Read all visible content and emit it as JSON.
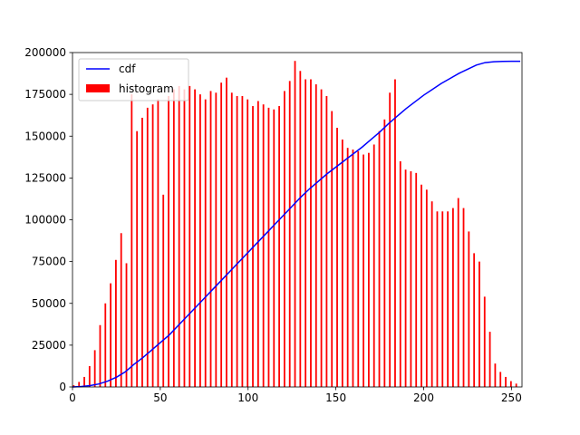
{
  "chart_data": {
    "type": "bar",
    "title": "",
    "xlabel": "",
    "ylabel": "",
    "xlim": [
      0,
      256
    ],
    "ylim": [
      0,
      200000
    ],
    "x_ticks": [
      0,
      50,
      100,
      150,
      200,
      250
    ],
    "x_tick_labels": [
      "0",
      "50",
      "100",
      "150",
      "200",
      "250"
    ],
    "y_ticks": [
      0,
      25000,
      50000,
      75000,
      100000,
      125000,
      150000,
      175000,
      200000
    ],
    "y_tick_labels": [
      "0",
      "25000",
      "50000",
      "75000",
      "100000",
      "125000",
      "150000",
      "175000",
      "200000"
    ],
    "grid": false,
    "legend_position": "upper-left",
    "series": [
      {
        "name": "histogram",
        "kind": "bar",
        "color": "#ff0000",
        "points": [
          [
            0,
            1000
          ],
          [
            3,
            3000
          ],
          [
            6,
            6000
          ],
          [
            9,
            12500
          ],
          [
            12,
            22000
          ],
          [
            15,
            37000
          ],
          [
            18,
            50000
          ],
          [
            21,
            62000
          ],
          [
            24,
            76000
          ],
          [
            27,
            92000
          ],
          [
            30,
            74000
          ],
          [
            33,
            175000
          ],
          [
            36,
            153000
          ],
          [
            39,
            161000
          ],
          [
            42,
            167000
          ],
          [
            45,
            169000
          ],
          [
            48,
            172000
          ],
          [
            51,
            115000
          ],
          [
            54,
            174000
          ],
          [
            57,
            178000
          ],
          [
            60,
            180000
          ],
          [
            63,
            178000
          ],
          [
            66,
            180000
          ],
          [
            69,
            178000
          ],
          [
            72,
            175000
          ],
          [
            75,
            172000
          ],
          [
            78,
            177000
          ],
          [
            81,
            176000
          ],
          [
            84,
            182000
          ],
          [
            87,
            185000
          ],
          [
            90,
            176000
          ],
          [
            93,
            174000
          ],
          [
            96,
            174000
          ],
          [
            99,
            172000
          ],
          [
            102,
            168000
          ],
          [
            105,
            171000
          ],
          [
            108,
            169000
          ],
          [
            111,
            167000
          ],
          [
            114,
            166000
          ],
          [
            117,
            168000
          ],
          [
            120,
            177000
          ],
          [
            123,
            183000
          ],
          [
            126,
            195000
          ],
          [
            129,
            189000
          ],
          [
            132,
            184000
          ],
          [
            135,
            184000
          ],
          [
            138,
            181000
          ],
          [
            141,
            178000
          ],
          [
            144,
            174000
          ],
          [
            147,
            165000
          ],
          [
            150,
            155000
          ],
          [
            153,
            148000
          ],
          [
            156,
            143000
          ],
          [
            159,
            142000
          ],
          [
            162,
            141000
          ],
          [
            165,
            139000
          ],
          [
            168,
            140000
          ],
          [
            171,
            145000
          ],
          [
            174,
            153000
          ],
          [
            177,
            160000
          ],
          [
            180,
            176000
          ],
          [
            183,
            184000
          ],
          [
            186,
            135000
          ],
          [
            189,
            130000
          ],
          [
            192,
            129000
          ],
          [
            195,
            128000
          ],
          [
            198,
            121000
          ],
          [
            201,
            118000
          ],
          [
            204,
            111000
          ],
          [
            207,
            105000
          ],
          [
            210,
            105000
          ],
          [
            213,
            105000
          ],
          [
            216,
            107000
          ],
          [
            219,
            113000
          ],
          [
            222,
            107000
          ],
          [
            225,
            93000
          ],
          [
            228,
            80000
          ],
          [
            231,
            75000
          ],
          [
            234,
            54000
          ],
          [
            237,
            33000
          ],
          [
            240,
            14000
          ],
          [
            243,
            9000
          ],
          [
            246,
            6000
          ],
          [
            249,
            3500
          ],
          [
            252,
            2000
          ]
        ]
      },
      {
        "name": "cdf",
        "kind": "line",
        "color": "#0000ff",
        "points": [
          [
            0,
            0
          ],
          [
            5,
            300
          ],
          [
            10,
            800
          ],
          [
            15,
            1800
          ],
          [
            20,
            3500
          ],
          [
            25,
            5800
          ],
          [
            30,
            9000
          ],
          [
            35,
            13500
          ],
          [
            40,
            17500
          ],
          [
            45,
            22000
          ],
          [
            50,
            26500
          ],
          [
            55,
            31000
          ],
          [
            60,
            36500
          ],
          [
            65,
            42000
          ],
          [
            70,
            47500
          ],
          [
            75,
            53000
          ],
          [
            80,
            58500
          ],
          [
            85,
            64000
          ],
          [
            90,
            69500
          ],
          [
            95,
            75000
          ],
          [
            100,
            80500
          ],
          [
            105,
            86000
          ],
          [
            110,
            91500
          ],
          [
            115,
            97000
          ],
          [
            120,
            102500
          ],
          [
            125,
            108000
          ],
          [
            130,
            113500
          ],
          [
            135,
            118500
          ],
          [
            140,
            123000
          ],
          [
            145,
            127500
          ],
          [
            150,
            131500
          ],
          [
            155,
            135500
          ],
          [
            160,
            139500
          ],
          [
            165,
            143500
          ],
          [
            170,
            148000
          ],
          [
            175,
            152500
          ],
          [
            180,
            157500
          ],
          [
            185,
            162000
          ],
          [
            190,
            166500
          ],
          [
            195,
            170500
          ],
          [
            200,
            174500
          ],
          [
            205,
            178000
          ],
          [
            210,
            181500
          ],
          [
            215,
            184500
          ],
          [
            220,
            187500
          ],
          [
            225,
            190000
          ],
          [
            230,
            192500
          ],
          [
            235,
            194000
          ],
          [
            240,
            194500
          ],
          [
            245,
            194700
          ],
          [
            250,
            194800
          ],
          [
            255,
            194800
          ]
        ]
      }
    ]
  }
}
